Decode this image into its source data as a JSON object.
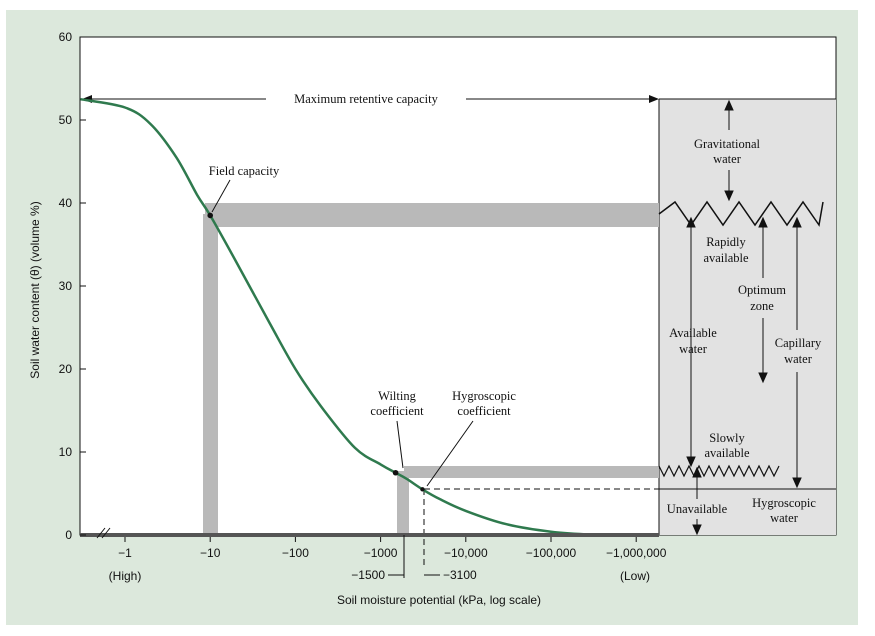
{
  "chart_data": {
    "type": "line",
    "title": "",
    "xlabel": "Soil moisture potential (kPa, log scale)",
    "ylabel": "Soil water content (θ) (volume %)",
    "x_scale": "log (kPa, negative)",
    "ylim": [
      0,
      60
    ],
    "yticks": [
      0,
      10,
      20,
      30,
      40,
      50,
      60
    ],
    "xticks": [
      {
        "value": -1,
        "label": "−1"
      },
      {
        "value": -10,
        "label": "−10"
      },
      {
        "value": -100,
        "label": "−100"
      },
      {
        "value": -1000,
        "label": "−1000"
      },
      {
        "value": -10000,
        "label": "−10,000"
      },
      {
        "value": -100000,
        "label": "−100,000"
      },
      {
        "value": -1000000,
        "label": "−1,000,000"
      }
    ],
    "xtick_sublabels": {
      "high": "(High)",
      "low": "(Low)"
    },
    "special_ticks": [
      {
        "value": -1500,
        "label": "−1500"
      },
      {
        "value": -3100,
        "label": "−3100"
      }
    ],
    "curve_color": "#2f7a4e",
    "series": [
      {
        "x": [
          -0.3,
          -1,
          -2,
          -4,
          -7,
          -10,
          -20,
          -50,
          -100,
          -200,
          -500,
          -1000,
          -1500,
          -2000,
          -3100,
          -5000,
          -10000,
          -30000,
          -100000,
          -300000,
          -1000000
        ],
        "y": [
          52.5,
          51.5,
          49.5,
          45.5,
          41,
          38.5,
          33,
          25.5,
          20,
          15.5,
          10.5,
          8.5,
          7.5,
          6.8,
          5.5,
          4.3,
          2.9,
          1.3,
          0.4,
          0.05,
          0
        ]
      }
    ],
    "reference_levels": [
      {
        "name": "Field capacity",
        "x": -10,
        "y": 38.5
      },
      {
        "name": "Wilting coefficient",
        "x": -1500,
        "y": 7.5
      },
      {
        "name": "Hygroscopic coefficient",
        "x": -3100,
        "y": 5.5
      },
      {
        "name": "Maximum retentive capacity",
        "y": 52.5
      }
    ],
    "annotations": {
      "max_retentive": "Maximum retentive capacity",
      "field_capacity": "Field capacity",
      "wilting_1": "Wilting",
      "wilting_2": "coefficient",
      "hygro_coef_1": "Hygroscopic",
      "hygro_coef_2": "coefficient",
      "gravitational_1": "Gravitational",
      "gravitational_2": "water",
      "rapidly_1": "Rapidly",
      "rapidly_2": "available",
      "optimum_1": "Optimum",
      "optimum_2": "zone",
      "available_1": "Available",
      "available_2": "water",
      "capillary_1": "Capillary",
      "capillary_2": "water",
      "slowly_1": "Slowly",
      "slowly_2": "available",
      "unavailable": "Unavailable",
      "hygroscopic_water_1": "Hygroscopic",
      "hygroscopic_water_2": "water"
    }
  }
}
